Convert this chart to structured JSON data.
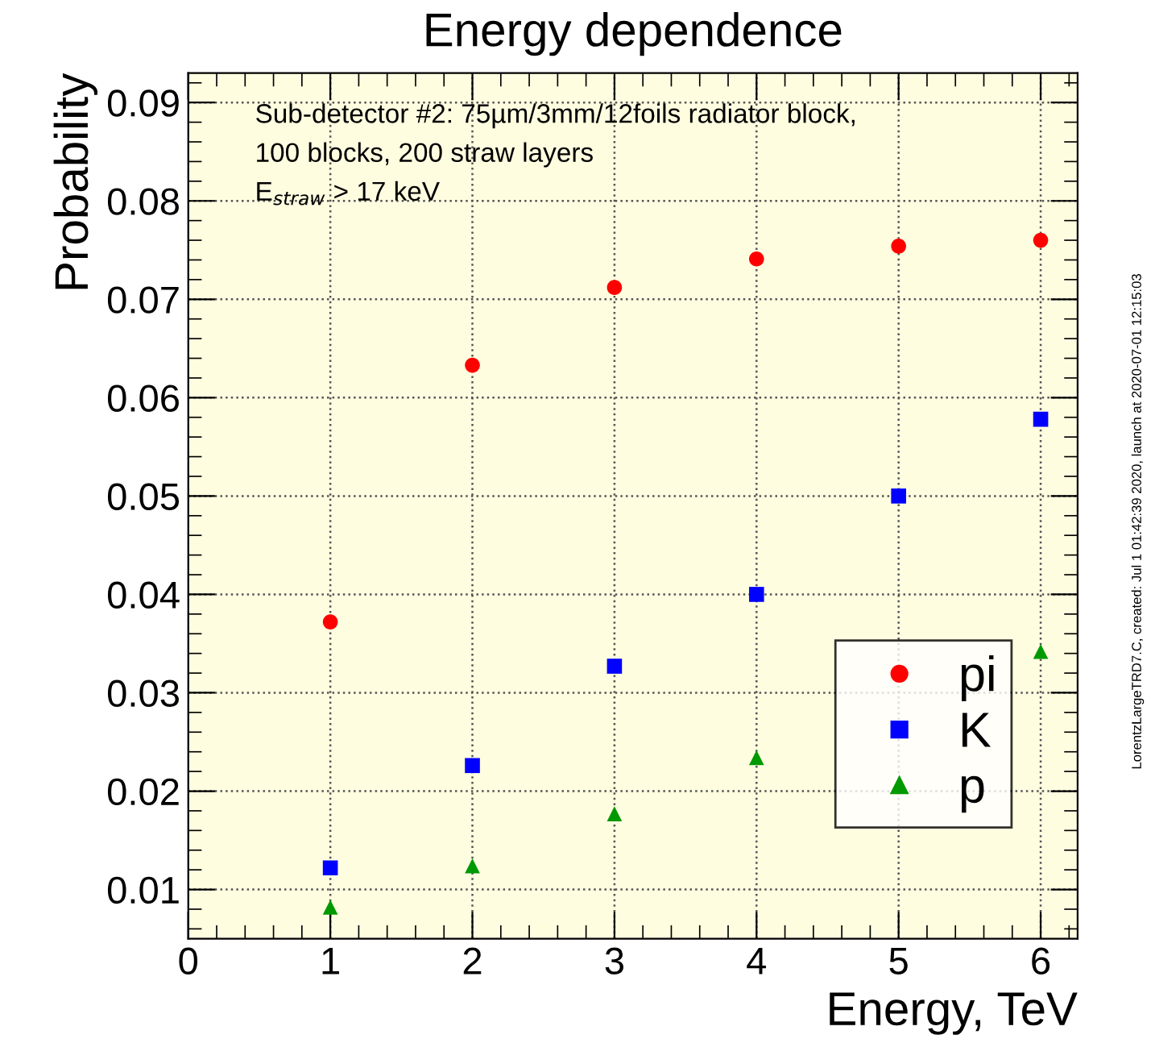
{
  "chart_data": {
    "type": "scatter",
    "title": "Energy dependence",
    "xlabel": "Energy, TeV",
    "ylabel": "Probability",
    "x": [
      1,
      2,
      3,
      4,
      5,
      6
    ],
    "series": [
      {
        "name": "pi",
        "color": "#ff0000",
        "marker": "circle",
        "values": [
          0.0372,
          0.0633,
          0.0712,
          0.0741,
          0.0754,
          0.076
        ]
      },
      {
        "name": "K",
        "color": "#0000ff",
        "marker": "square",
        "values": [
          0.0122,
          0.0226,
          0.0327,
          0.04,
          0.05,
          0.0578
        ]
      },
      {
        "name": "p",
        "color": "#009900",
        "marker": "triangle",
        "values": [
          0.0082,
          0.0124,
          0.0177,
          0.0234,
          null,
          0.0342
        ]
      }
    ],
    "xlim": [
      0,
      6.26
    ],
    "xticks": [
      0,
      1,
      2,
      3,
      4,
      5,
      6
    ],
    "ylim": [
      0.005,
      0.093
    ],
    "yticks": [
      0.01,
      0.02,
      0.03,
      0.04,
      0.05,
      0.06,
      0.07,
      0.08,
      0.09
    ],
    "grid": true,
    "legend": "bottom right",
    "annotations": [
      "Sub-detector #2: 75µm/3mm/12foils radiator block,",
      "100 blocks, 200 straw layers",
      "E$_{straw}$ > 17 keV",
      "LorentzLargeTRD7.C, created: Jul 1 01:42:39 2020, launch at 2020-07-01 12:15:03"
    ]
  }
}
